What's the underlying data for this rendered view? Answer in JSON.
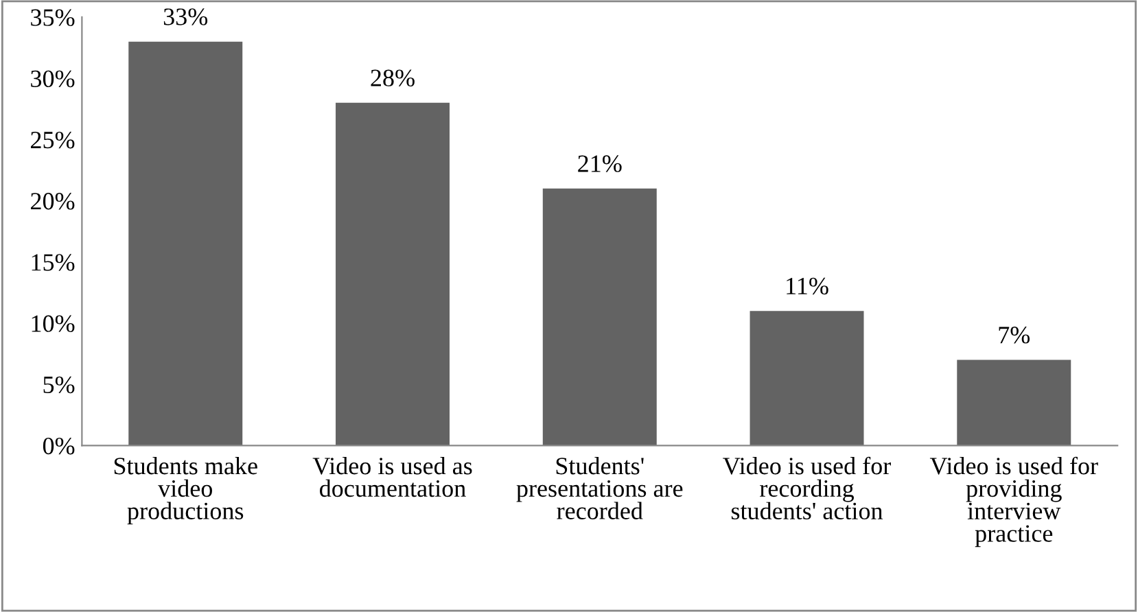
{
  "chart_data": {
    "type": "bar",
    "categories": [
      "Students make\nvideo\nproductions",
      "Video is used as\ndocumentation",
      "Students'\npresentations are\nrecorded",
      "Video is used for\nrecording\nstudents' action",
      "Video is used for\nproviding\ninterview\npractice"
    ],
    "values": [
      33,
      28,
      21,
      11,
      7
    ],
    "value_labels": [
      "33%",
      "28%",
      "21%",
      "11%",
      "7%"
    ],
    "color": "#636363",
    "ylim": [
      0,
      35
    ],
    "yticks": [
      {
        "value": 0,
        "label": "0%"
      },
      {
        "value": 5,
        "label": "5%"
      },
      {
        "value": 10,
        "label": "10%"
      },
      {
        "value": 15,
        "label": "15%"
      },
      {
        "value": 20,
        "label": "20%"
      },
      {
        "value": 25,
        "label": "25%"
      },
      {
        "value": 30,
        "label": "30%"
      },
      {
        "value": 35,
        "label": "35%"
      }
    ],
    "grid": false,
    "legend": false
  }
}
